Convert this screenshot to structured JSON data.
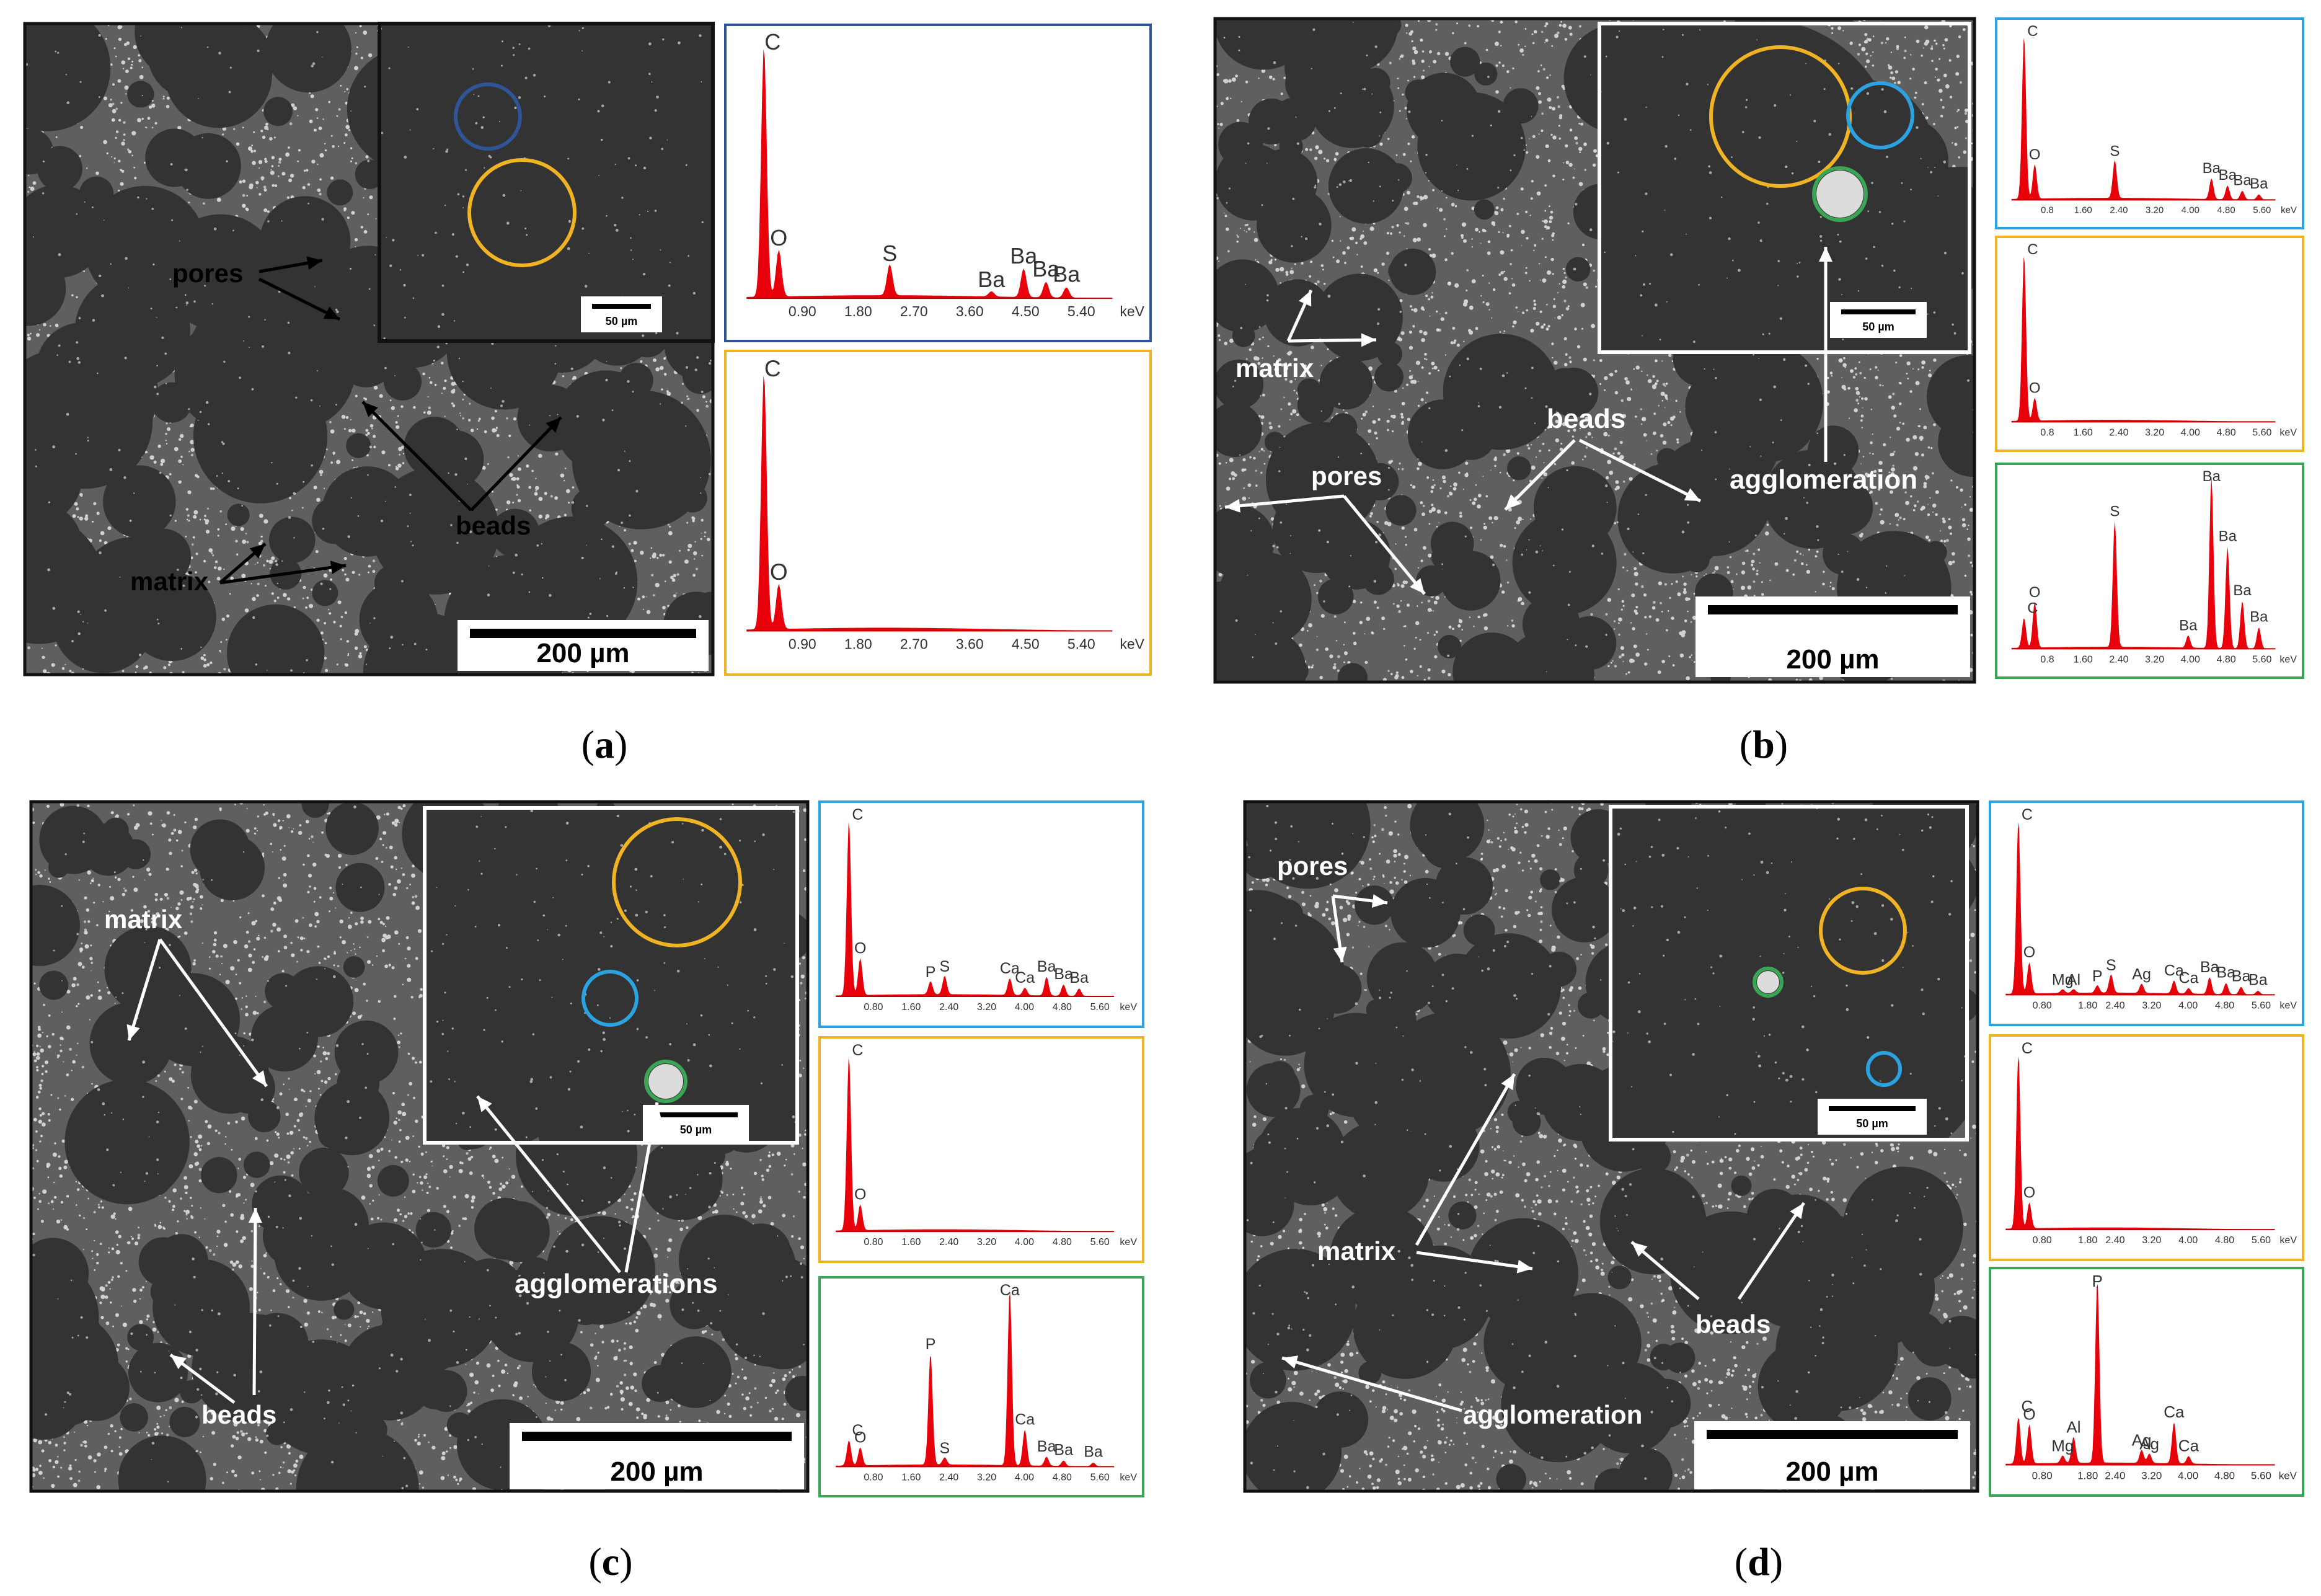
{
  "colors": {
    "blue": "#2f5597",
    "light_blue": "#2aa3e0",
    "orange": "#f0b323",
    "green": "#3aa655",
    "spectrum_red": "#e8000b",
    "sem_base": "#5f5f5f",
    "bead": "#333333"
  },
  "panels": [
    {
      "id": "a",
      "caption_letter": "a",
      "scale_bar": "200 µm",
      "inset_scale_bar": "50 µm",
      "labels": [
        {
          "key": "pores",
          "text": "pores"
        },
        {
          "key": "beads",
          "text": "beads"
        },
        {
          "key": "matrix",
          "text": "matrix"
        }
      ],
      "spectra": [
        {
          "border": "blue",
          "x_ticks": [
            "0.90",
            "1.80",
            "2.70",
            "3.60",
            "4.50",
            "5.40"
          ],
          "unit": "keV",
          "peaks": [
            {
              "label": "C",
              "energy": 0.28,
              "height": 0.97
            },
            {
              "label": "O",
              "energy": 0.52,
              "height": 0.18
            },
            {
              "label": "S",
              "energy": 2.31,
              "height": 0.12
            },
            {
              "label": "Ba",
              "energy": 4.47,
              "height": 0.11
            },
            {
              "label": "Ba",
              "energy": 4.83,
              "height": 0.06
            },
            {
              "label": "Ba",
              "energy": 5.16,
              "height": 0.04
            },
            {
              "label": "Ba",
              "energy": 3.95,
              "height": 0.02
            }
          ]
        },
        {
          "border": "orange",
          "x_ticks": [
            "0.90",
            "1.80",
            "2.70",
            "3.60",
            "4.50",
            "5.40"
          ],
          "unit": "keV",
          "peaks": [
            {
              "label": "C",
              "energy": 0.28,
              "height": 0.97
            },
            {
              "label": "O",
              "energy": 0.52,
              "height": 0.17
            }
          ]
        }
      ]
    },
    {
      "id": "b",
      "caption_letter": "b",
      "scale_bar": "200 µm",
      "inset_scale_bar": "50 µm",
      "labels": [
        {
          "key": "matrix",
          "text": "matrix"
        },
        {
          "key": "beads",
          "text": "beads"
        },
        {
          "key": "pores",
          "text": "pores"
        },
        {
          "key": "agglomeration",
          "text": "agglomeration"
        }
      ],
      "spectra": [
        {
          "border": "light_blue",
          "x_ticks": [
            "0.8",
            "1.60",
            "2.40",
            "3.20",
            "4.00",
            "4.80",
            "5.60"
          ],
          "unit": "keV",
          "peaks": [
            {
              "label": "C",
              "energy": 0.28,
              "height": 0.95
            },
            {
              "label": "O",
              "energy": 0.52,
              "height": 0.2
            },
            {
              "label": "S",
              "energy": 2.31,
              "height": 0.22
            },
            {
              "label": "Ba",
              "energy": 4.47,
              "height": 0.12
            },
            {
              "label": "Ba",
              "energy": 4.83,
              "height": 0.08
            },
            {
              "label": "Ba",
              "energy": 5.16,
              "height": 0.05
            },
            {
              "label": "Ba",
              "energy": 5.53,
              "height": 0.03
            }
          ]
        },
        {
          "border": "orange",
          "x_ticks": [
            "0.8",
            "1.60",
            "2.40",
            "3.20",
            "4.00",
            "4.80",
            "5.60"
          ],
          "unit": "keV",
          "peaks": [
            {
              "label": "C",
              "energy": 0.28,
              "height": 0.95
            },
            {
              "label": "O",
              "energy": 0.52,
              "height": 0.13
            }
          ]
        },
        {
          "border": "green",
          "x_ticks": [
            "0.8",
            "1.60",
            "2.40",
            "3.20",
            "4.00",
            "4.80",
            "5.60"
          ],
          "unit": "keV",
          "peaks": [
            {
              "label": "C",
              "energy": 0.28,
              "height": 0.17
            },
            {
              "label": "O",
              "energy": 0.52,
              "height": 0.26
            },
            {
              "label": "S",
              "energy": 2.31,
              "height": 0.72
            },
            {
              "label": "Ba",
              "energy": 4.47,
              "height": 0.98
            },
            {
              "label": "Ba",
              "energy": 4.83,
              "height": 0.58
            },
            {
              "label": "Ba",
              "energy": 5.16,
              "height": 0.27
            },
            {
              "label": "Ba",
              "energy": 5.53,
              "height": 0.12
            },
            {
              "label": "Ba",
              "energy": 3.95,
              "height": 0.07
            }
          ]
        }
      ]
    },
    {
      "id": "c",
      "caption_letter": "c",
      "scale_bar": "200 µm",
      "inset_scale_bar": "50 µm",
      "labels": [
        {
          "key": "matrix",
          "text": "matrix"
        },
        {
          "key": "beads",
          "text": "beads"
        },
        {
          "key": "agglomerations",
          "text": "agglomerations"
        }
      ],
      "spectra": [
        {
          "border": "light_blue",
          "x_ticks": [
            "0.80",
            "1.60",
            "2.40",
            "3.20",
            "4.00",
            "4.80",
            "5.60"
          ],
          "unit": "keV",
          "peaks": [
            {
              "label": "C",
              "energy": 0.28,
              "height": 0.95
            },
            {
              "label": "O",
              "energy": 0.52,
              "height": 0.2
            },
            {
              "label": "P",
              "energy": 2.01,
              "height": 0.07
            },
            {
              "label": "S",
              "energy": 2.31,
              "height": 0.1
            },
            {
              "label": "Ca",
              "energy": 3.69,
              "height": 0.09
            },
            {
              "label": "Ca",
              "energy": 4.01,
              "height": 0.04
            },
            {
              "label": "Ba",
              "energy": 4.47,
              "height": 0.1
            },
            {
              "label": "Ba",
              "energy": 4.83,
              "height": 0.06
            },
            {
              "label": "Ba",
              "energy": 5.16,
              "height": 0.04
            }
          ]
        },
        {
          "border": "orange",
          "x_ticks": [
            "0.80",
            "1.60",
            "2.40",
            "3.20",
            "4.00",
            "4.80",
            "5.60"
          ],
          "unit": "keV",
          "peaks": [
            {
              "label": "C",
              "energy": 0.28,
              "height": 0.95
            },
            {
              "label": "O",
              "energy": 0.52,
              "height": 0.14
            }
          ]
        },
        {
          "border": "green",
          "x_ticks": [
            "0.80",
            "1.60",
            "2.40",
            "3.20",
            "4.00",
            "4.80",
            "5.60"
          ],
          "unit": "keV",
          "peaks": [
            {
              "label": "C",
              "energy": 0.28,
              "height": 0.14
            },
            {
              "label": "O",
              "energy": 0.52,
              "height": 0.1
            },
            {
              "label": "P",
              "energy": 2.01,
              "height": 0.62
            },
            {
              "label": "S",
              "energy": 2.31,
              "height": 0.04
            },
            {
              "label": "Ca",
              "energy": 3.69,
              "height": 0.98
            },
            {
              "label": "Ca",
              "energy": 4.01,
              "height": 0.2
            },
            {
              "label": "Ba",
              "energy": 4.47,
              "height": 0.05
            },
            {
              "label": "Ba",
              "energy": 4.83,
              "height": 0.03
            },
            {
              "label": "Ba",
              "energy": 5.46,
              "height": 0.02
            }
          ]
        }
      ]
    },
    {
      "id": "d",
      "caption_letter": "d",
      "scale_bar": "200 µm",
      "inset_scale_bar": "50 µm",
      "labels": [
        {
          "key": "pores",
          "text": "pores"
        },
        {
          "key": "matrix",
          "text": "matrix"
        },
        {
          "key": "beads",
          "text": "beads"
        },
        {
          "key": "agglomeration",
          "text": "agglomeration"
        }
      ],
      "spectra": [
        {
          "border": "light_blue",
          "x_ticks": [
            "0.80",
            "1.80",
            "2.40",
            "3.20",
            "4.00",
            "4.80",
            "5.60"
          ],
          "unit": "keV",
          "peaks": [
            {
              "label": "C",
              "energy": 0.28,
              "height": 0.95
            },
            {
              "label": "O",
              "energy": 0.52,
              "height": 0.17
            },
            {
              "label": "Mg",
              "energy": 1.25,
              "height": 0.02
            },
            {
              "label": "Al",
              "energy": 1.49,
              "height": 0.02
            },
            {
              "label": "P",
              "energy": 2.01,
              "height": 0.04
            },
            {
              "label": "S",
              "energy": 2.31,
              "height": 0.1
            },
            {
              "label": "Ag",
              "energy": 2.98,
              "height": 0.05
            },
            {
              "label": "Ca",
              "energy": 3.69,
              "height": 0.07
            },
            {
              "label": "Ca",
              "energy": 4.01,
              "height": 0.03
            },
            {
              "label": "Ba",
              "energy": 4.47,
              "height": 0.09
            },
            {
              "label": "Ba",
              "energy": 4.83,
              "height": 0.06
            },
            {
              "label": "Ba",
              "energy": 5.16,
              "height": 0.04
            },
            {
              "label": "Ba",
              "energy": 5.53,
              "height": 0.02
            }
          ]
        },
        {
          "border": "orange",
          "x_ticks": [
            "0.80",
            "1.80",
            "2.40",
            "3.20",
            "4.00",
            "4.80",
            "5.60"
          ],
          "unit": "keV",
          "peaks": [
            {
              "label": "C",
              "energy": 0.28,
              "height": 0.95
            },
            {
              "label": "O",
              "energy": 0.52,
              "height": 0.14
            }
          ]
        },
        {
          "border": "green",
          "x_ticks": [
            "0.80",
            "1.80",
            "2.40",
            "3.20",
            "4.00",
            "4.80",
            "5.60"
          ],
          "unit": "keV",
          "peaks": [
            {
              "label": "C",
              "energy": 0.28,
              "height": 0.25
            },
            {
              "label": "O",
              "energy": 0.52,
              "height": 0.21
            },
            {
              "label": "Mg",
              "energy": 1.25,
              "height": 0.04
            },
            {
              "label": "Al",
              "energy": 1.49,
              "height": 0.14
            },
            {
              "label": "P",
              "energy": 2.01,
              "height": 0.98
            },
            {
              "label": "Ag",
              "energy": 2.98,
              "height": 0.07
            },
            {
              "label": "Ag",
              "energy": 3.15,
              "height": 0.05
            },
            {
              "label": "Ca",
              "energy": 3.69,
              "height": 0.22
            },
            {
              "label": "Ca",
              "energy": 4.01,
              "height": 0.04
            }
          ]
        }
      ]
    }
  ]
}
